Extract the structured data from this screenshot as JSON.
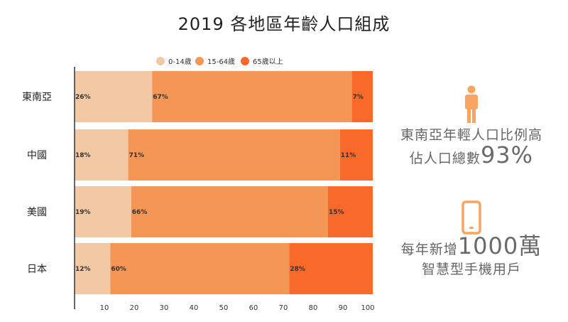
{
  "chart_data": {
    "type": "bar",
    "orientation": "horizontal",
    "stacked": true,
    "title": "2019 各地區年齡人口組成",
    "categories": [
      "東南亞",
      "中國",
      "美國",
      "日本"
    ],
    "series": [
      {
        "name": "0-14歲",
        "color": "#f2c9a4",
        "values": [
          26,
          18,
          19,
          12
        ],
        "labels": [
          "26%",
          "18%",
          "19%",
          "12%"
        ]
      },
      {
        "name": "15-64歲",
        "color": "#f39656",
        "values": [
          67,
          71,
          66,
          60
        ],
        "labels": [
          "67%",
          "71%",
          "66%",
          "60%"
        ]
      },
      {
        "name": "65歲以上",
        "color": "#f96a2a",
        "values": [
          7,
          11,
          15,
          28
        ],
        "labels": [
          "7%",
          "11%",
          "15%",
          "28%"
        ]
      }
    ],
    "xticks": [
      10,
      20,
      30,
      40,
      50,
      60,
      70,
      80,
      90,
      100
    ],
    "xlim": [
      0,
      100
    ],
    "legend_position": "top",
    "grid": false
  },
  "side": {
    "block1": {
      "icon": "person-icon",
      "line1": "東南亞年輕人口比例高",
      "line2_prefix": "佔人口總數",
      "line2_number": "93%"
    },
    "block2": {
      "icon": "smartphone-icon",
      "line1_prefix": "每年新增",
      "line1_number": "1000萬",
      "line2": "智慧型手機用戶"
    },
    "icon_color": "#f7a560"
  }
}
